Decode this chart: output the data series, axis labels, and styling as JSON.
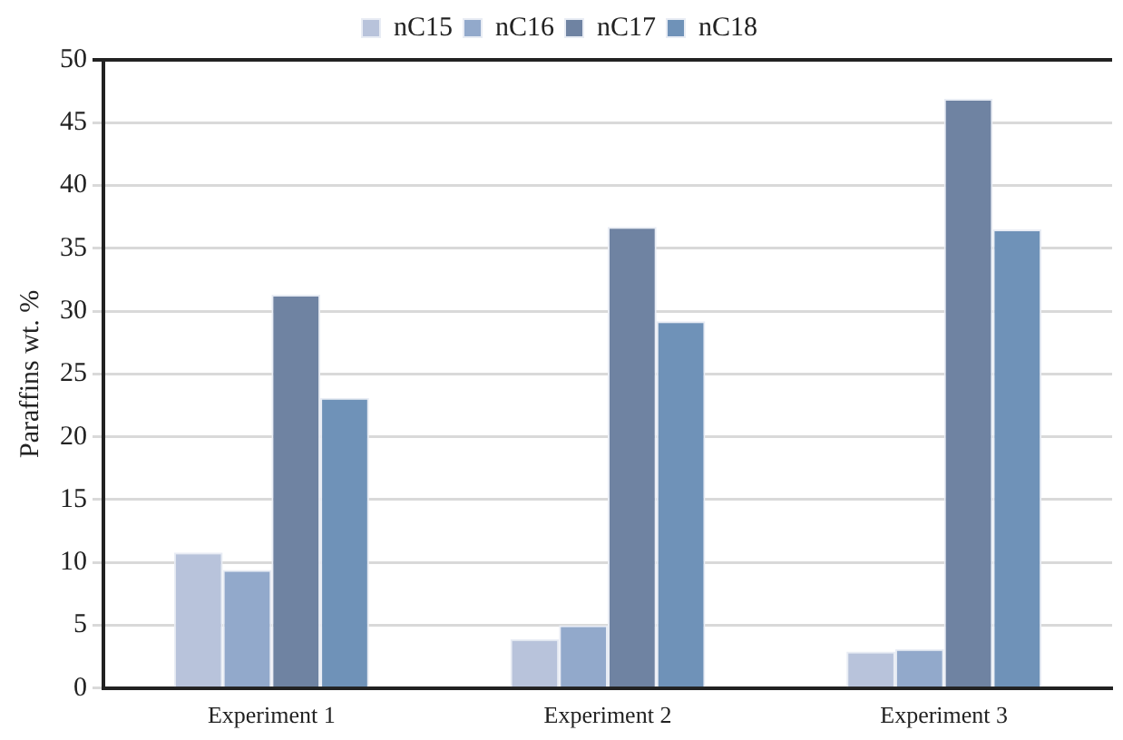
{
  "chart_data": {
    "type": "bar",
    "ylabel": "Paraffins wt. %",
    "categories": [
      "Experiment 1",
      "Experiment 2",
      "Experiment 3"
    ],
    "series": [
      {
        "name": "nC15",
        "color": "#b8c3db",
        "values": [
          10.8,
          3.9,
          2.9
        ]
      },
      {
        "name": "nC16",
        "color": "#92a9cb",
        "values": [
          9.4,
          5.0,
          3.1
        ]
      },
      {
        "name": "nC17",
        "color": "#6f83a2",
        "values": [
          31.3,
          36.7,
          46.9
        ]
      },
      {
        "name": "nC18",
        "color": "#6f92b8",
        "values": [
          23.1,
          29.2,
          36.5
        ]
      }
    ],
    "ylim": [
      0,
      50
    ],
    "yticks": [
      0,
      5,
      10,
      15,
      20,
      25,
      30,
      35,
      40,
      45,
      50
    ],
    "grid": "y",
    "legend": "top"
  }
}
